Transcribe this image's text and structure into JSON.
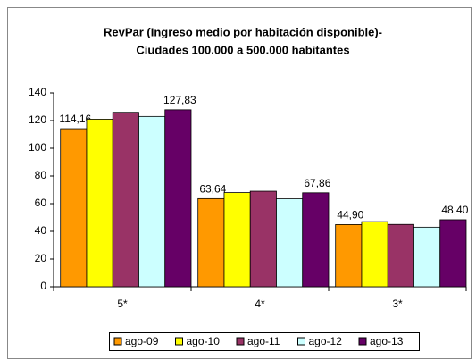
{
  "chart_data": {
    "type": "bar",
    "title": [
      "RevPar (Ingreso medio por habitación disponible)-",
      "Ciudades 100.000 a 500.000 habitantes"
    ],
    "categories": [
      "5*",
      "4*",
      "3*"
    ],
    "series": [
      {
        "name": "ago-09",
        "color": "#ff9900",
        "values": [
          114.16,
          63.64,
          44.9
        ],
        "value_labels": [
          "114,16",
          "63,64",
          "44,90"
        ]
      },
      {
        "name": "ago-10",
        "color": "#ffff00",
        "values": [
          121,
          68,
          47
        ]
      },
      {
        "name": "ago-11",
        "color": "#993366",
        "values": [
          126,
          69,
          45
        ]
      },
      {
        "name": "ago-12",
        "color": "#ccffff",
        "values": [
          123,
          63.5,
          43
        ]
      },
      {
        "name": "ago-13",
        "color": "#660066",
        "values": [
          127.83,
          67.86,
          48.4
        ],
        "value_labels": [
          "127,83",
          "67,86",
          "48,40"
        ]
      }
    ],
    "ylim": [
      0,
      140
    ],
    "yticks": [
      0,
      20,
      40,
      60,
      80,
      100,
      120,
      140
    ],
    "grid": false,
    "legend": "bottom"
  }
}
